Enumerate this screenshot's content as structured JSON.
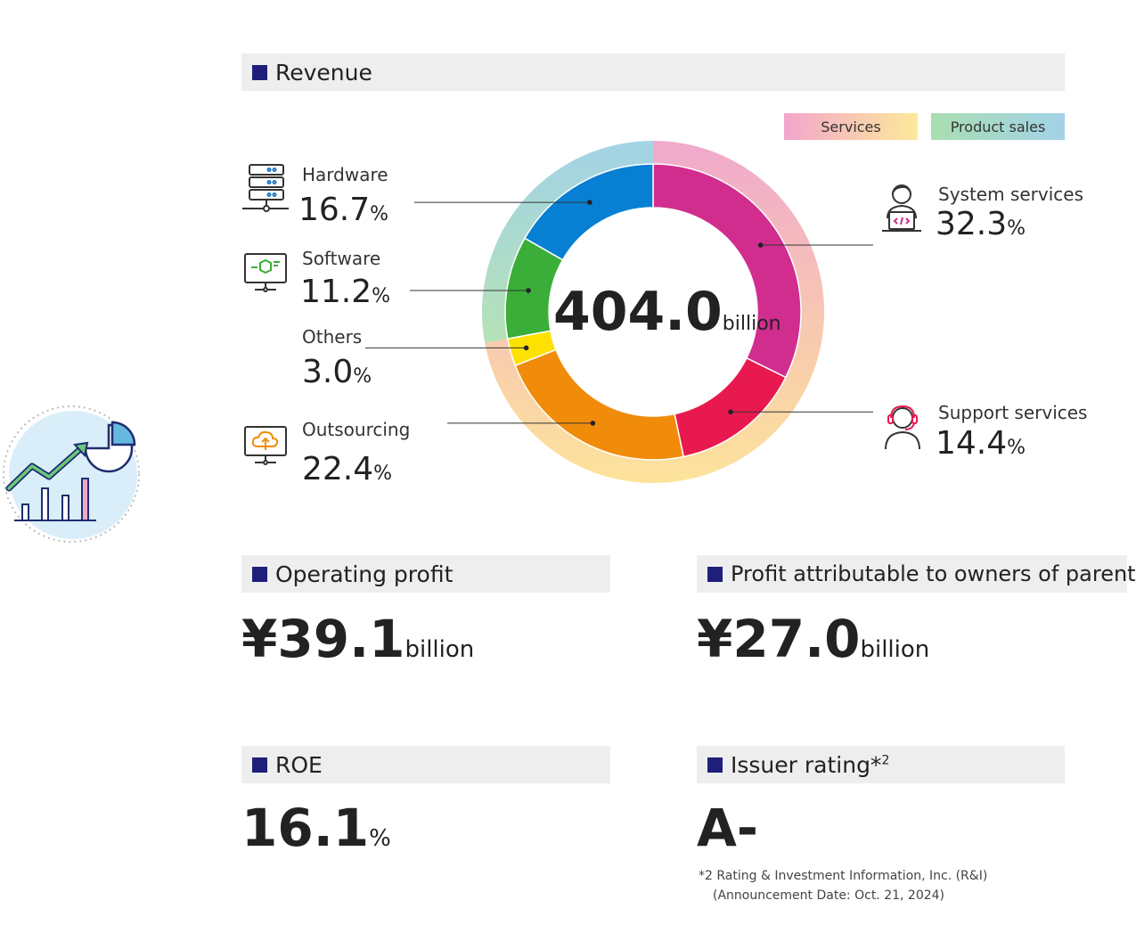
{
  "revenue": {
    "title": "Revenue",
    "total_value": "404.0",
    "total_unit": "billion"
  },
  "legend": {
    "services": "Services",
    "product_sales": "Product sales"
  },
  "segments": {
    "hardware": {
      "label": "Hardware",
      "value": "16.7",
      "unit": "%"
    },
    "software": {
      "label": "Software",
      "value": "11.2",
      "unit": "%"
    },
    "others": {
      "label": "Others",
      "value": "3.0",
      "unit": "%"
    },
    "outsourcing": {
      "label": "Outsourcing",
      "value": "22.4",
      "unit": "%"
    },
    "system_services": {
      "label": "System services",
      "value": "32.3",
      "unit": "%"
    },
    "support_services": {
      "label": "Support services",
      "value": "14.4",
      "unit": "%"
    }
  },
  "operating_profit": {
    "title": "Operating profit",
    "value": "¥39.1",
    "unit": "billion"
  },
  "profit_parent": {
    "title": "Profit attributable to owners of parent",
    "value": "¥27.0",
    "unit": "billion"
  },
  "roe": {
    "title": "ROE",
    "value": "16.1",
    "unit": "%"
  },
  "issuer_rating": {
    "title": "Issuer rating*",
    "footnote_mark": "2",
    "value": "A-",
    "note_line1": "*2 Rating & Investment Information, Inc. (R&I)",
    "note_line2": "(Announcement Date: Oct. 21, 2024)"
  },
  "icons": [
    "chart-illustration-icon",
    "server-icon",
    "software-monitor-icon",
    "cloud-upload-monitor-icon",
    "developer-icon",
    "headset-support-icon"
  ],
  "chart_data": {
    "type": "pie",
    "title": "Revenue",
    "total": "404.0 billion",
    "categories": [
      "System services",
      "Support services",
      "Outsourcing",
      "Others",
      "Software",
      "Hardware"
    ],
    "values": [
      32.3,
      14.4,
      22.4,
      3.0,
      11.2,
      16.7
    ],
    "colors": [
      "#d12d8f",
      "#e8194f",
      "#f08c0a",
      "#fde100",
      "#3aae38",
      "#0780d4"
    ],
    "outer_ring": {
      "Services": [
        32.3,
        14.4,
        22.4,
        3.0
      ],
      "Product sales": [
        11.2,
        16.7
      ]
    },
    "legend_colors": {
      "Services": [
        "#f1a7cc",
        "#fde89a"
      ],
      "Product sales": [
        "#a9deb0",
        "#a3d2e8"
      ]
    }
  }
}
